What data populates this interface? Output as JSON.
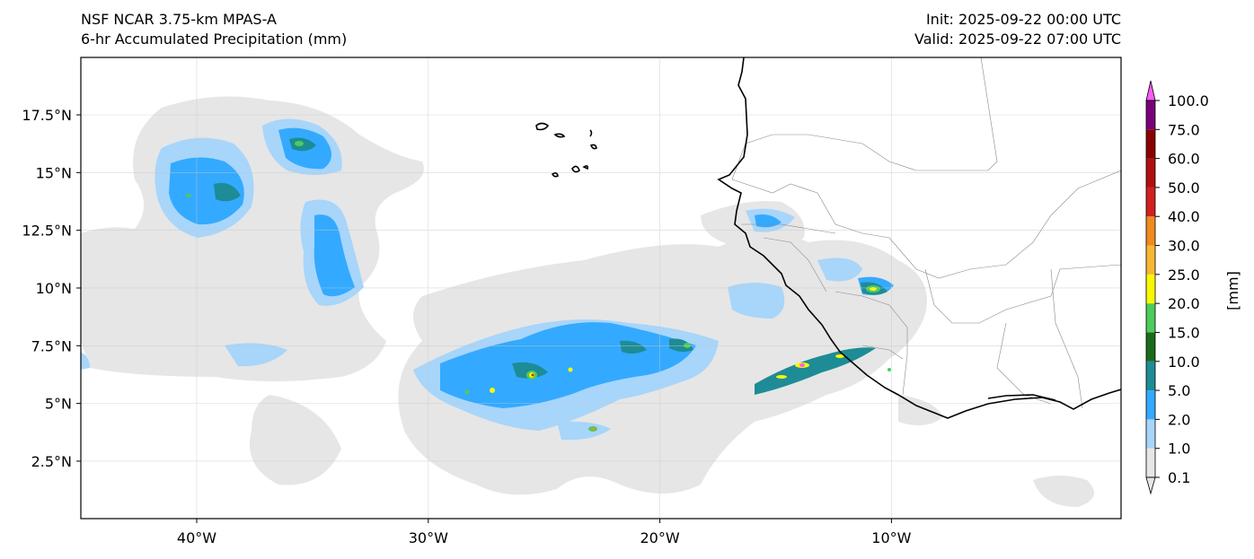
{
  "header": {
    "model": "NSF NCAR 3.75-km MPAS-A",
    "product": "6-hr Accumulated Precipitation (mm)",
    "init": "Init: 2025-09-22 00:00 UTC",
    "valid": "Valid: 2025-09-22 07:00 UTC"
  },
  "axes": {
    "x_ticks": [
      {
        "value": -40,
        "label": "40°W"
      },
      {
        "value": -30,
        "label": "30°W"
      },
      {
        "value": -20,
        "label": "20°W"
      },
      {
        "value": -10,
        "label": "10°W"
      }
    ],
    "y_ticks": [
      {
        "value": 17.5,
        "label": "17.5°N"
      },
      {
        "value": 15,
        "label": "15°N"
      },
      {
        "value": 12.5,
        "label": "12.5°N"
      },
      {
        "value": 10,
        "label": "10°N"
      },
      {
        "value": 7.5,
        "label": "7.5°N"
      },
      {
        "value": 5,
        "label": "5°N"
      },
      {
        "value": 2.5,
        "label": "2.5°N"
      }
    ]
  },
  "colorbar": {
    "unit_label": "[mm]",
    "levels": [
      "0.1",
      "1.0",
      "2.0",
      "5.0",
      "10.0",
      "15.0",
      "20.0",
      "25.0",
      "30.0",
      "40.0",
      "50.0",
      "60.0",
      "75.0",
      "100.0"
    ],
    "colors": [
      "#e6e6e6",
      "#a8d5fa",
      "#33aaff",
      "#1e8c96",
      "#1a6b1a",
      "#4ccc5a",
      "#f8f800",
      "#f7b733",
      "#ef8a20",
      "#d02020",
      "#b01010",
      "#8a0000",
      "#7a007a",
      "#ff5aff"
    ],
    "extend": "both"
  },
  "map": {
    "region": "Tropical eastern Atlantic and West Africa",
    "features": [
      "coastlines",
      "country borders",
      "gridlines"
    ]
  }
}
